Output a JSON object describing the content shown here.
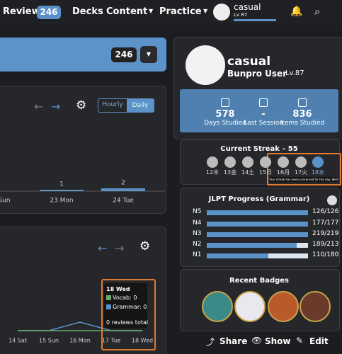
{
  "nav": {
    "review": "Review",
    "review_count": "246",
    "decks": "Decks",
    "content": "Content",
    "practice": "Practice",
    "user": "casual",
    "level": "Lv 87"
  },
  "banner": {
    "count": "246"
  },
  "reviews_chart": {
    "type": "bar",
    "toggle": [
      "Hourly",
      "Daily"
    ],
    "categories": [
      "Sun",
      "23 Mon",
      "24 Tue"
    ],
    "values": [
      0,
      1,
      2
    ],
    "color": "#5b93c8"
  },
  "activity_chart": {
    "type": "line",
    "categories": [
      "14 Sat",
      "15 Sun",
      "16 Mon",
      "17 Tue",
      "18 Wed"
    ],
    "series": [
      {
        "color": "#5b93c8",
        "values": [
          0,
          0,
          2,
          0,
          0
        ]
      },
      {
        "color": "#6cab6c",
        "values": [
          0,
          0,
          0,
          0,
          0
        ]
      }
    ],
    "tooltip": {
      "title": "18 Wed",
      "lines": [
        "Vocab: 0",
        "Grammar: 0"
      ],
      "total": "0 reviews total"
    }
  },
  "profile": {
    "name": "casual",
    "role": "Bunpro User",
    "level": "Lv.87",
    "stats": [
      {
        "value": "578",
        "label": "Days Studied"
      },
      {
        "value": "-",
        "label": "Last Session"
      },
      {
        "value": "836",
        "label": "Items Studied"
      }
    ]
  },
  "streak": {
    "title": "Current Streak – 55",
    "days": [
      "12木",
      "13金",
      "14土",
      "15日",
      "16月",
      "17火",
      "18水"
    ],
    "tooltip": "Your streak has been preserved for the day. Well done!"
  },
  "jlpt": {
    "title": "JLPT Progress (Grammar)",
    "rows": [
      {
        "level": "N5",
        "done": 126,
        "total": 126,
        "label": "126/126"
      },
      {
        "level": "N4",
        "done": 177,
        "total": 177,
        "label": "177/177"
      },
      {
        "level": "N3",
        "done": 219,
        "total": 219,
        "label": "219/219"
      },
      {
        "level": "N2",
        "done": 189,
        "total": 213,
        "label": "189/213"
      },
      {
        "level": "N1",
        "done": 110,
        "total": 180,
        "label": "110/180"
      }
    ]
  },
  "badges": {
    "title": "Recent Badges"
  },
  "actions": [
    "Share",
    "Show",
    "Edit"
  ]
}
